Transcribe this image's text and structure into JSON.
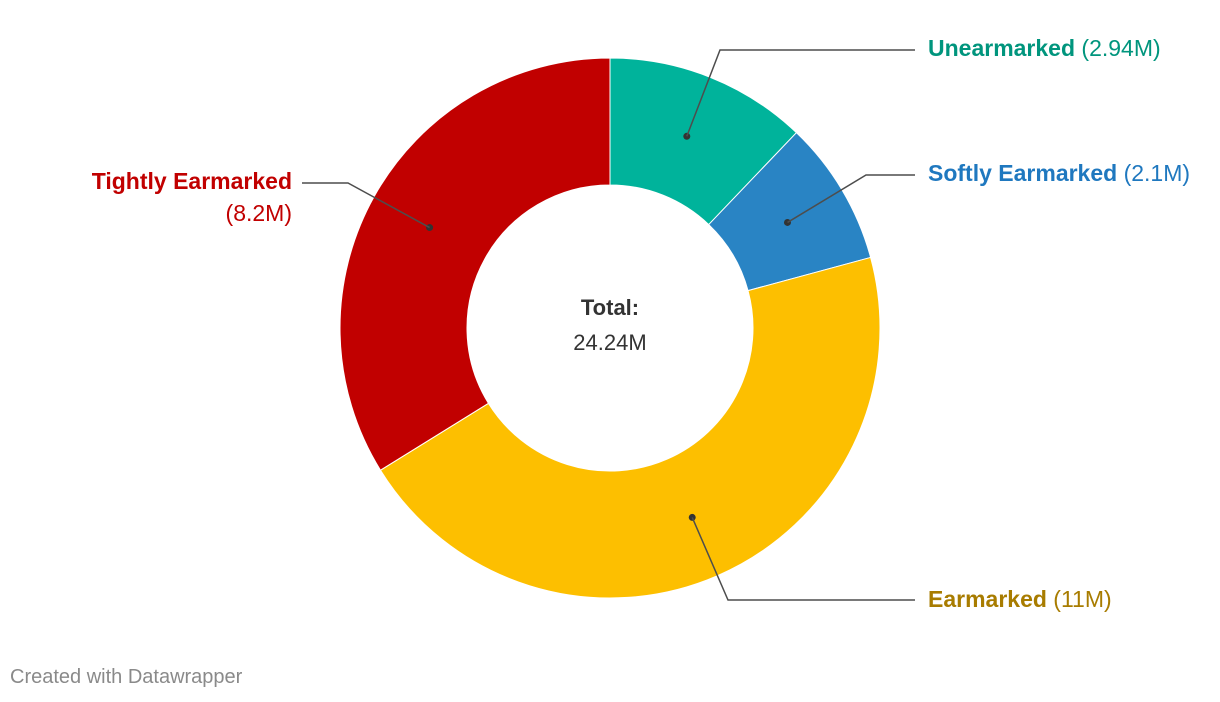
{
  "chart_data": {
    "type": "pie",
    "subtype": "donut",
    "center_label": {
      "title": "Total:",
      "value": "24.24M"
    },
    "slices": [
      {
        "name": "Unearmarked",
        "value": 2.94,
        "value_label": "(2.94M)",
        "color": "#00b39b",
        "text_color": "#00957d"
      },
      {
        "name": "Softly Earmarked",
        "value": 2.1,
        "value_label": "(2.1M)",
        "color": "#2984c4",
        "text_color": "#1f78bf"
      },
      {
        "name": "Earmarked",
        "value": 11,
        "value_label": "(11M)",
        "color": "#fdbf00",
        "text_color": "#a87c00"
      },
      {
        "name": "Tightly Earmarked",
        "value": 8.2,
        "value_label": "(8.2M)",
        "color": "#c10000",
        "text_color": "#c10000"
      }
    ]
  },
  "footer": {
    "credit": "Created with Datawrapper"
  },
  "colors": {
    "leader_line": "#4d4d4d",
    "center_title": "#333333",
    "center_value": "#333333",
    "footer_text": "#8a8a8a"
  }
}
